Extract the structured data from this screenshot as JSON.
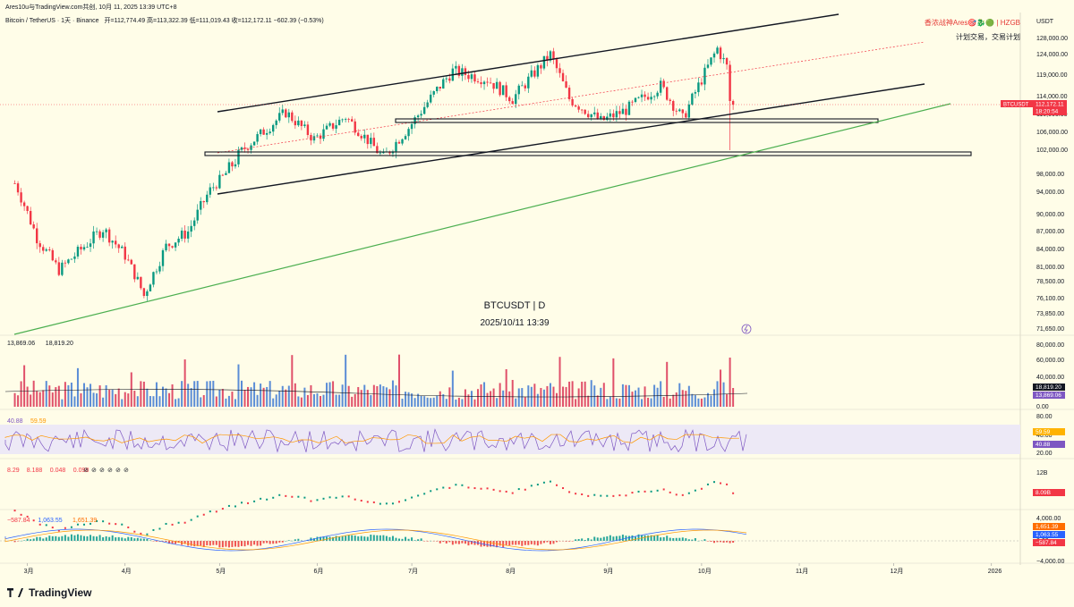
{
  "header": {
    "account": "Ares10u与TradingView.com共创, 10月 11, 2025 13:39 UTC+8",
    "symbol_line": "Bitcoin / TetherUS · 1天 · Binance",
    "ohlc": "开=112,774.49  高=113,322.39  低=111,019.43  收=112,172.11  −602.39 (−0.53%)"
  },
  "brand": {
    "line1": "香浓战神Ares🎯🐉🟢 | HZGB",
    "line2": "计划交易，交易计划"
  },
  "watermark": {
    "symbol": "BTCUSDT | D",
    "datetime": "2025/10/11 13:39"
  },
  "footer": {
    "logo_text": "TradingView"
  },
  "colors": {
    "up": "#089981",
    "down": "#f23645",
    "trend_green": "#4caf50",
    "price_tag": "#f23645",
    "ema_purple": "#7e57c2",
    "rsi_ma": "#ff9800"
  },
  "chart_data": [
    {
      "type": "candlestick",
      "title": "Bitcoin / TetherUS · 1天 · Binance",
      "price_axis_unit": "USDT",
      "y_ticks": [
        "128,000.00",
        "124,000.00",
        "119,000.00",
        "114,000.00",
        "110,000.00",
        "106,000.00",
        "102,000.00",
        "98,000.00",
        "94,000.00",
        "90,000.00",
        "87,000.00",
        "84,000.00",
        "81,000.00",
        "78,500.00",
        "76,100.00",
        "73,850.00",
        "71,650.00"
      ],
      "x_ticks": [
        "3月",
        "4月",
        "5月",
        "6月",
        "7月",
        "8月",
        "9月",
        "10月",
        "11月",
        "12月",
        "2026"
      ],
      "last_price_tag": {
        "symbol": "BTCUSDT",
        "price": "112,172.11",
        "countdown": "18:20:54"
      },
      "path_points": [
        [
          "2025-02-25",
          96000
        ],
        [
          "2025-03-04",
          86000
        ],
        [
          "2025-03-11",
          80500
        ],
        [
          "2025-03-18",
          84000
        ],
        [
          "2025-03-25",
          87500
        ],
        [
          "2025-04-01",
          83000
        ],
        [
          "2025-04-07",
          76500
        ],
        [
          "2025-04-14",
          84500
        ],
        [
          "2025-04-21",
          87000
        ],
        [
          "2025-04-28",
          94500
        ],
        [
          "2025-05-09",
          102500
        ],
        [
          "2025-05-22",
          110500
        ],
        [
          "2025-05-31",
          104500
        ],
        [
          "2025-06-10",
          109500
        ],
        [
          "2025-06-22",
          100500
        ],
        [
          "2025-06-30",
          107000
        ],
        [
          "2025-07-10",
          116500
        ],
        [
          "2025-07-14",
          120000
        ],
        [
          "2025-07-25",
          118000
        ],
        [
          "2025-08-02",
          113500
        ],
        [
          "2025-08-14",
          124000
        ],
        [
          "2025-08-20",
          113500
        ],
        [
          "2025-08-30",
          108500
        ],
        [
          "2025-09-07",
          111000
        ],
        [
          "2025-09-18",
          116500
        ],
        [
          "2025-09-25",
          109000
        ],
        [
          "2025-10-01",
          118000
        ],
        [
          "2025-10-06",
          125500
        ],
        [
          "2025-10-09",
          121000
        ],
        [
          "2025-10-10",
          113000
        ],
        [
          "2025-10-11",
          112172
        ]
      ]
    },
    {
      "type": "bar",
      "name": "Volume",
      "legend": [
        "13,869.06",
        "18,819.20"
      ],
      "y_ticks": [
        "80,000.00",
        "60,000.00",
        "40,000.00",
        "0.00"
      ],
      "last_tags": [
        "18,819.20",
        "13,869.06"
      ]
    },
    {
      "type": "line",
      "name": "RSI",
      "legend": [
        "40.88",
        "59.59"
      ],
      "y_ticks": [
        "80.00",
        "40.00",
        "20.00"
      ],
      "last_tags": [
        "59.59",
        "40.88"
      ]
    },
    {
      "type": "candlestick",
      "name": "Sub-indicator",
      "legend": [
        "8.29",
        "8.188",
        "0.048",
        "0.098"
      ],
      "y_ticks": [
        "12B"
      ],
      "last_tags": [
        "8.09B"
      ]
    },
    {
      "type": "bar",
      "name": "MACD",
      "legend": [
        "−587.84",
        "1,063.55",
        "1,651.39"
      ],
      "y_ticks": [
        "4,000.00",
        "0.00",
        "−4,000.00"
      ],
      "last_tags": [
        "1,651.39",
        "1,063.55",
        "−587.84"
      ]
    }
  ]
}
